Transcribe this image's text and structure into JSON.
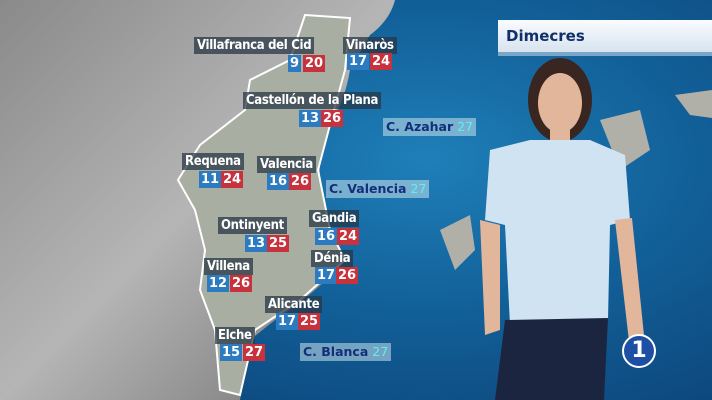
{
  "header": {
    "day": "Dimecres"
  },
  "cities": [
    {
      "name": "Villafranca del Cid",
      "min": "9",
      "max": "20"
    },
    {
      "name": "Vinaròs",
      "min": "17",
      "max": "24"
    },
    {
      "name": "Castellón de la Plana",
      "min": "13",
      "max": "26"
    },
    {
      "name": "Requena",
      "min": "11",
      "max": "24"
    },
    {
      "name": "Valencia",
      "min": "16",
      "max": "26"
    },
    {
      "name": "Ontinyent",
      "min": "13",
      "max": "25"
    },
    {
      "name": "Gandia",
      "min": "16",
      "max": "24"
    },
    {
      "name": "Villena",
      "min": "12",
      "max": "26"
    },
    {
      "name": "Dénia",
      "min": "17",
      "max": "26"
    },
    {
      "name": "Alicante",
      "min": "17",
      "max": "25"
    },
    {
      "name": "Elche",
      "min": "15",
      "max": "27"
    }
  ],
  "coasts": [
    {
      "name": "C. Azahar",
      "temp": "27"
    },
    {
      "name": "C. Valencia",
      "temp": "27"
    },
    {
      "name": "C. Blanca",
      "temp": "27"
    }
  ],
  "logo": {
    "text": "1"
  },
  "colors": {
    "min_bg": "#2c7bc0",
    "max_bg": "#c8323c",
    "sea": "#125f98",
    "coast_text": "#132f7a"
  }
}
